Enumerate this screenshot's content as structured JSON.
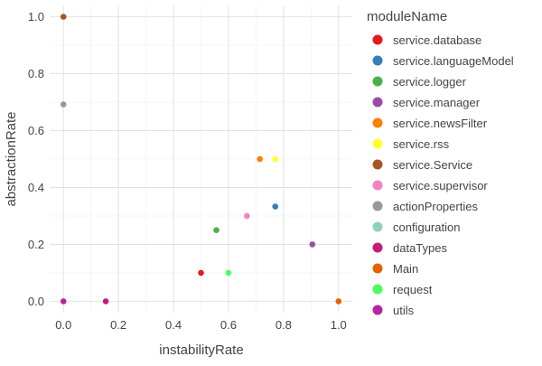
{
  "chart_data": {
    "type": "scatter",
    "xlabel": "instabilityRate",
    "ylabel": "abstractionRate",
    "xlim": [
      -0.05,
      1.05
    ],
    "ylim": [
      -0.04,
      1.04
    ],
    "x_ticks": [
      0.0,
      0.2,
      0.4,
      0.6,
      0.8,
      1.0
    ],
    "x_tick_labels": [
      "0.0",
      "0.2",
      "0.4",
      "0.6",
      "0.8",
      "1.0"
    ],
    "y_ticks": [
      0.0,
      0.2,
      0.4,
      0.6,
      0.8,
      1.0
    ],
    "y_tick_labels": [
      "0.0",
      "0.2",
      "0.4",
      "0.6",
      "0.8",
      "1.0"
    ],
    "grid": true,
    "legend_position": "right",
    "legend_title": "moduleName",
    "series": [
      {
        "name": "service.database",
        "color": "#e41a1c",
        "x": 0.5,
        "y": 0.1
      },
      {
        "name": "service.languageModel",
        "color": "#377eb8",
        "x": 0.77,
        "y": 0.333
      },
      {
        "name": "service.logger",
        "color": "#4daf4a",
        "x": 0.556,
        "y": 0.25
      },
      {
        "name": "service.manager",
        "color": "#984ea3",
        "x": 0.905,
        "y": 0.2
      },
      {
        "name": "service.newsFilter",
        "color": "#ff7f00",
        "x": 0.714,
        "y": 0.5
      },
      {
        "name": "service.rss",
        "color": "#ffff33",
        "x": 0.77,
        "y": 0.5
      },
      {
        "name": "service.Service",
        "color": "#a65628",
        "x": 0.0,
        "y": 1.0
      },
      {
        "name": "service.supervisor",
        "color": "#f781bf",
        "x": 0.667,
        "y": 0.3
      },
      {
        "name": "actionProperties",
        "color": "#999999",
        "x": 0.0,
        "y": 0.692
      },
      {
        "name": "configuration",
        "color": "#8dd3b7",
        "x": null,
        "y": null
      },
      {
        "name": "dataTypes",
        "color": "#c51b7d",
        "x": 0.154,
        "y": 0.0
      },
      {
        "name": "Main",
        "color": "#e66101",
        "x": 1.0,
        "y": 0.0
      },
      {
        "name": "request",
        "color": "#4bff5e",
        "x": 0.6,
        "y": 0.1
      },
      {
        "name": "utils",
        "color": "#b5259c",
        "x": 0.0,
        "y": 0.0
      }
    ]
  }
}
